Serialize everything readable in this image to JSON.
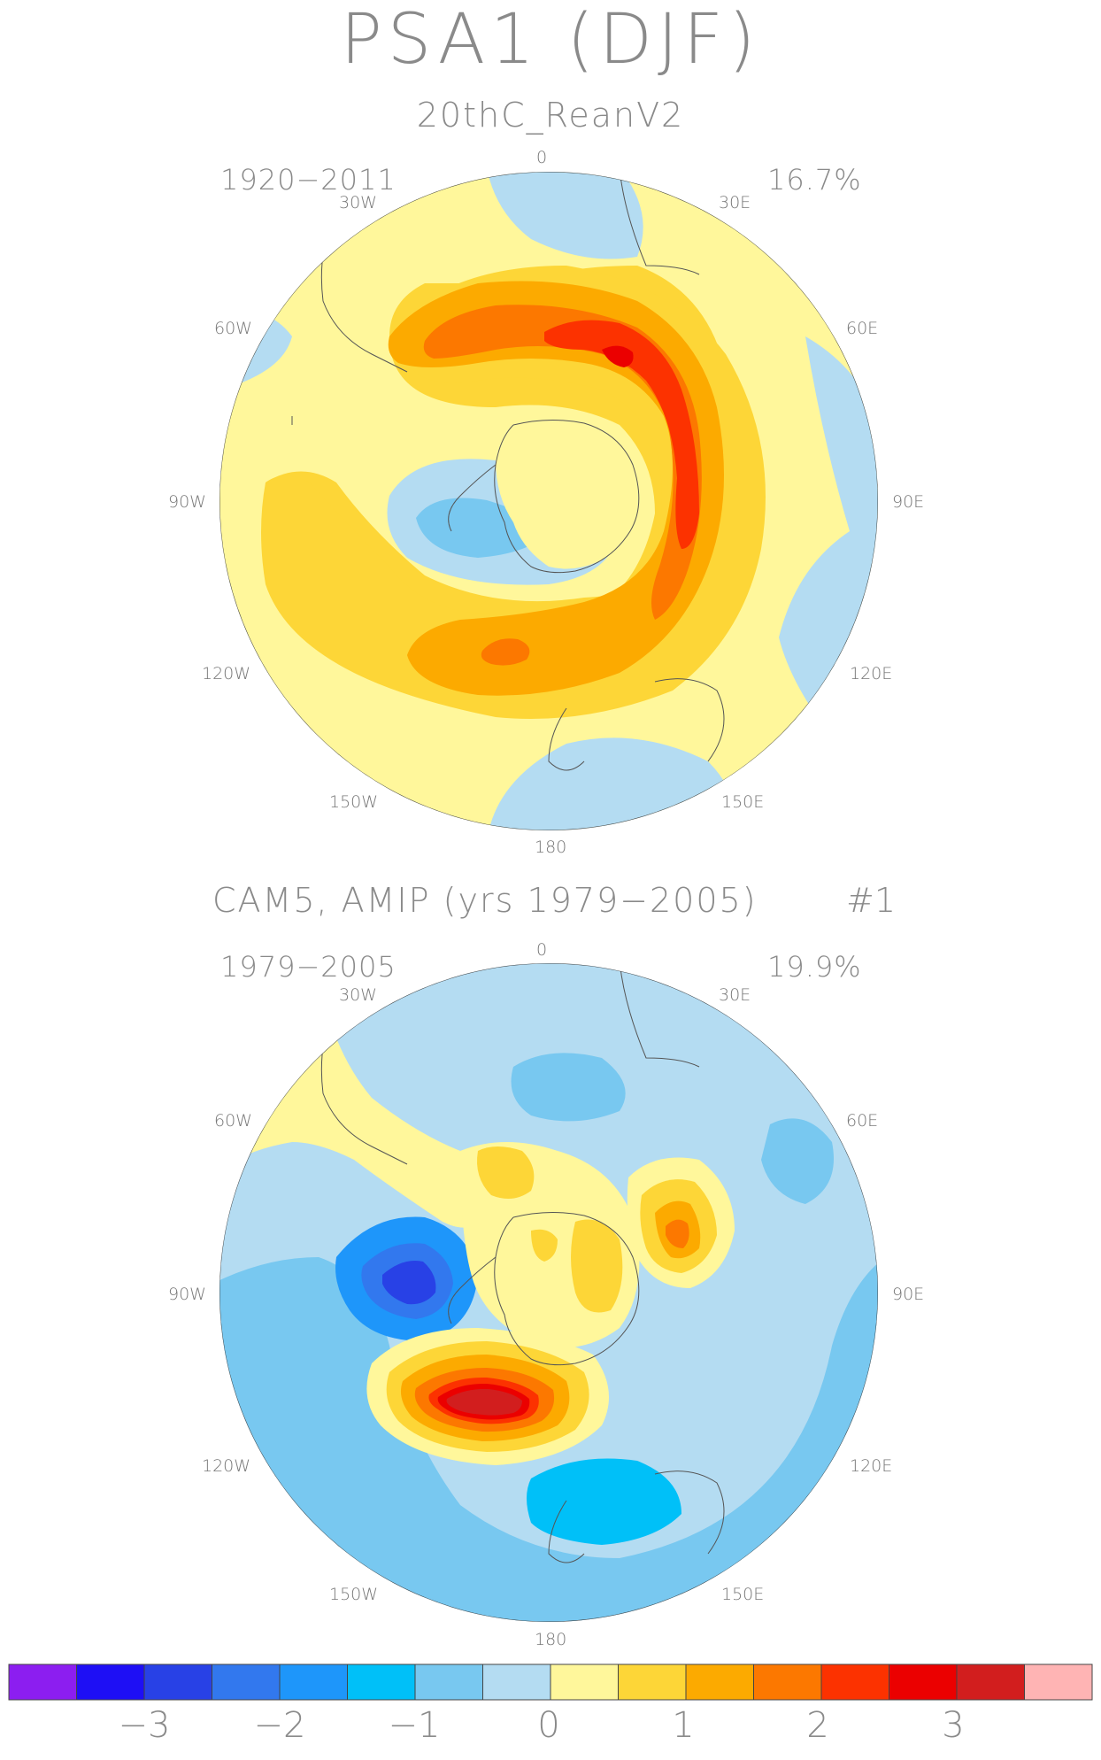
{
  "title": "PSA1 (DJF)",
  "panels": [
    {
      "label": "20thC_ReanV2",
      "period": "1920-2011",
      "variance": "16.7%",
      "lon_labels": [
        "0",
        "30E",
        "60E",
        "90E",
        "120E",
        "150E",
        "180",
        "150W",
        "120W",
        "90W",
        "60W",
        "30W"
      ]
    },
    {
      "label": "CAM5, AMIP (yrs 1979-2005)",
      "ensemble": "#1",
      "period": "1979-2005",
      "variance": "19.9%",
      "lon_labels": [
        "0",
        "30E",
        "60E",
        "90E",
        "120E",
        "150E",
        "180",
        "150W",
        "120W",
        "90W",
        "60W",
        "30W"
      ]
    }
  ],
  "colorbar": {
    "colors": [
      "#8c1ef0",
      "#1e0ff5",
      "#2841e6",
      "#3278ee",
      "#1e96fa",
      "#00c0f8",
      "#78c8f0",
      "#b4dcf2",
      "#fff79b",
      "#fdd637",
      "#fcaa00",
      "#fc7800",
      "#fc3200",
      "#eb0000",
      "#d21e1e",
      "#ffb4b4"
    ],
    "tick_labels": [
      "-3",
      "-2",
      "-1",
      "0",
      "1",
      "2",
      "3"
    ]
  }
}
